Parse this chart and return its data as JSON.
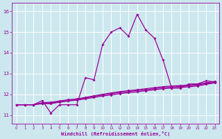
{
  "xlabel": "Windchill (Refroidissement éolien,°C)",
  "background_color": "#cce8ee",
  "grid_color": "#ffffff",
  "line_color": "#990099",
  "x": [
    0,
    1,
    2,
    3,
    4,
    5,
    6,
    7,
    8,
    9,
    10,
    11,
    12,
    13,
    14,
    15,
    16,
    17,
    18,
    19,
    20,
    21,
    22,
    23
  ],
  "y_main": [
    11.5,
    11.5,
    11.5,
    11.7,
    11.1,
    11.5,
    11.5,
    11.5,
    12.8,
    12.7,
    14.4,
    15.0,
    15.2,
    14.8,
    15.85,
    15.1,
    14.7,
    13.65,
    12.3,
    12.3,
    12.5,
    12.5,
    12.65,
    12.6
  ],
  "y_line2": [
    11.5,
    11.5,
    11.5,
    11.55,
    11.55,
    11.62,
    11.68,
    11.72,
    11.78,
    11.85,
    11.92,
    11.97,
    12.03,
    12.08,
    12.12,
    12.17,
    12.22,
    12.27,
    12.3,
    12.33,
    12.36,
    12.4,
    12.48,
    12.55
  ],
  "y_line3": [
    11.5,
    11.5,
    11.5,
    11.57,
    11.58,
    11.65,
    11.7,
    11.75,
    11.82,
    11.9,
    11.97,
    12.03,
    12.08,
    12.13,
    12.18,
    12.22,
    12.27,
    12.32,
    12.35,
    12.38,
    12.41,
    12.45,
    12.52,
    12.58
  ],
  "y_line4": [
    11.5,
    11.5,
    11.5,
    11.6,
    11.62,
    11.68,
    11.74,
    11.78,
    11.85,
    11.93,
    12.0,
    12.07,
    12.13,
    12.18,
    12.22,
    12.27,
    12.32,
    12.37,
    12.4,
    12.42,
    12.45,
    12.49,
    12.56,
    12.62
  ],
  "ylim": [
    10.6,
    16.4
  ],
  "yticks": [
    11,
    12,
    13,
    14,
    15,
    16
  ],
  "xticks": [
    0,
    1,
    2,
    3,
    4,
    5,
    6,
    7,
    8,
    9,
    10,
    11,
    12,
    13,
    14,
    15,
    16,
    17,
    18,
    19,
    20,
    21,
    22,
    23
  ]
}
